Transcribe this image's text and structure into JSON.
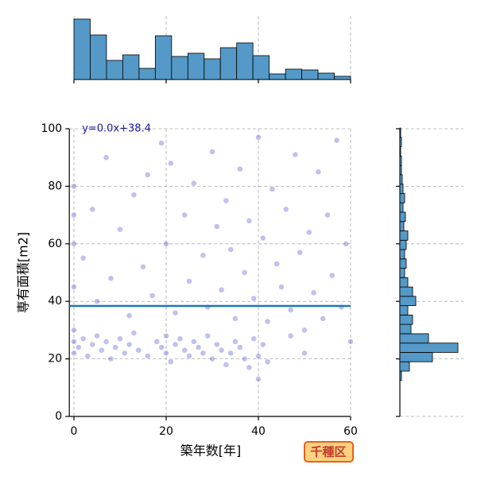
{
  "chart_data": {
    "type": "scatter",
    "x_label": "築年数[年]",
    "y_label": "専有面積[m2]",
    "xlim": [
      -1,
      60
    ],
    "ylim": [
      0,
      100
    ],
    "xticks": [
      0,
      20,
      40,
      60
    ],
    "yticks": [
      0,
      20,
      40,
      60,
      80,
      100
    ],
    "grid": true,
    "series": [
      {
        "color": "#3333cc",
        "x": [
          0,
          0,
          0,
          0,
          0,
          0,
          0,
          1,
          2,
          3,
          4,
          5,
          6,
          7,
          8,
          9,
          10,
          11,
          12,
          13,
          14,
          16,
          18,
          19,
          20,
          20,
          21,
          22,
          23,
          24,
          25,
          26,
          27,
          28,
          29,
          30,
          31,
          32,
          33,
          34,
          35,
          36,
          37,
          38,
          39,
          40,
          40,
          41,
          42,
          2,
          4,
          5,
          7,
          8,
          10,
          12,
          13,
          15,
          16,
          17,
          19,
          20,
          21,
          22,
          24,
          25,
          26,
          28,
          29,
          30,
          31,
          32,
          33,
          34,
          35,
          36,
          37,
          38,
          39,
          40,
          41,
          42,
          43,
          44,
          45,
          46,
          47,
          48,
          49,
          50,
          51,
          52,
          53,
          54,
          55,
          56,
          57,
          58,
          59,
          60,
          50,
          47
        ],
        "y": [
          22,
          26,
          30,
          45,
          60,
          70,
          80,
          24,
          27,
          21,
          25,
          28,
          23,
          26,
          20,
          24,
          27,
          22,
          25,
          29,
          23,
          21,
          26,
          24,
          22,
          28,
          19,
          25,
          27,
          23,
          21,
          26,
          24,
          22,
          28,
          20,
          25,
          23,
          18,
          22,
          26,
          24,
          20,
          17,
          27,
          21,
          13,
          25,
          19,
          55,
          72,
          40,
          90,
          48,
          65,
          35,
          77,
          52,
          84,
          42,
          95,
          60,
          88,
          36,
          70,
          47,
          81,
          56,
          38,
          92,
          66,
          44,
          75,
          58,
          34,
          86,
          50,
          68,
          41,
          97,
          62,
          33,
          79,
          53,
          45,
          72,
          37,
          91,
          57,
          30,
          64,
          43,
          85,
          34,
          70,
          49,
          96,
          38,
          60,
          26,
          22,
          28
        ]
      }
    ],
    "regression": {
      "slope": 0.0,
      "intercept": 38.4,
      "color": "#1f77b4",
      "label": "y=0.0x+38.4"
    },
    "badge": "千種区",
    "marginal_x": {
      "type": "histogram",
      "color": "#5499c7",
      "ylim": [
        0,
        160
      ],
      "bins": [
        0,
        3.53,
        7.06,
        10.59,
        14.12,
        17.65,
        21.18,
        24.71,
        28.24,
        31.76,
        35.29,
        38.82,
        42.35,
        45.88,
        49.41,
        52.94,
        56.47,
        60
      ],
      "counts": [
        152,
        112,
        48,
        62,
        28,
        110,
        58,
        66,
        52,
        80,
        92,
        60,
        14,
        26,
        24,
        16,
        8
      ]
    },
    "marginal_y": {
      "type": "histogram",
      "color": "#5499c7",
      "xlim": [
        0,
        160
      ],
      "bins": [
        12.5,
        15.75,
        19,
        22.25,
        25.5,
        28.75,
        32,
        35.25,
        38.5,
        41.75,
        45,
        48.25,
        51.5,
        54.75,
        58,
        61.25,
        64.5,
        67.75,
        71,
        74.25,
        77.5,
        80.75,
        84,
        87.25,
        90.5,
        93.75,
        97,
        100.25
      ],
      "counts": [
        4,
        24,
        82,
        146,
        72,
        28,
        32,
        20,
        40,
        32,
        20,
        12,
        16,
        12,
        16,
        20,
        10,
        14,
        8,
        12,
        8,
        6,
        4,
        4,
        2,
        4,
        2
      ]
    }
  }
}
